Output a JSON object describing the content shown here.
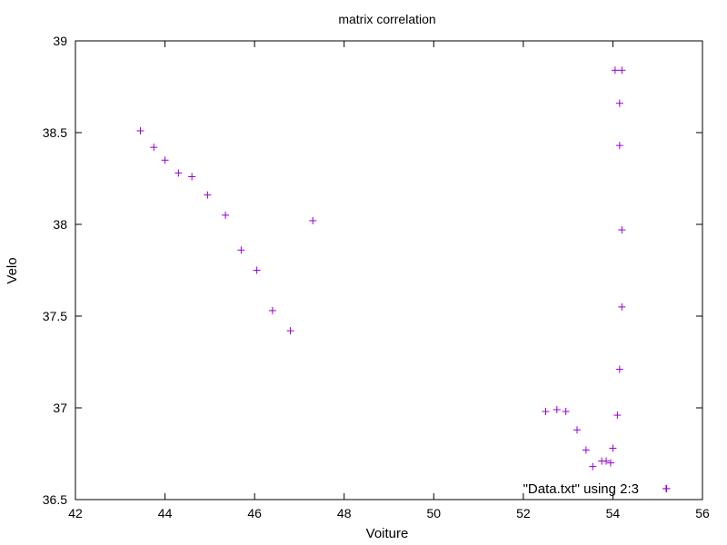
{
  "chart_data": {
    "type": "scatter",
    "title": "matrix correlation",
    "xlabel": "Voiture",
    "ylabel": "Velo",
    "xlim": [
      42,
      56
    ],
    "ylim": [
      36.5,
      39
    ],
    "xticks": [
      42,
      44,
      46,
      48,
      50,
      52,
      54,
      56
    ],
    "yticks": [
      36.5,
      37,
      37.5,
      38,
      38.5,
      39
    ],
    "xtick_labels": [
      "42",
      "44",
      "46",
      "48",
      "50",
      "52",
      "54",
      "56"
    ],
    "ytick_labels": [
      "36.5",
      "37",
      "37.5",
      "38",
      "38.5",
      "39"
    ],
    "grid": false,
    "legend_position": "bottom-right",
    "series": [
      {
        "name": "\"Data.txt\" using 2:3",
        "color": "#9400d3",
        "marker": "plus",
        "points": [
          [
            43.45,
            38.51
          ],
          [
            43.75,
            38.42
          ],
          [
            44.0,
            38.35
          ],
          [
            44.3,
            38.28
          ],
          [
            44.6,
            38.26
          ],
          [
            44.95,
            38.16
          ],
          [
            45.35,
            38.05
          ],
          [
            45.7,
            37.86
          ],
          [
            46.05,
            37.75
          ],
          [
            46.4,
            37.53
          ],
          [
            46.8,
            37.42
          ],
          [
            47.3,
            38.02
          ],
          [
            52.5,
            36.98
          ],
          [
            52.75,
            36.99
          ],
          [
            52.95,
            36.98
          ],
          [
            53.2,
            36.88
          ],
          [
            53.4,
            36.77
          ],
          [
            53.55,
            36.68
          ],
          [
            53.75,
            36.71
          ],
          [
            53.85,
            36.71
          ],
          [
            53.95,
            36.7
          ],
          [
            54.0,
            36.78
          ],
          [
            54.05,
            38.84
          ],
          [
            54.2,
            38.84
          ],
          [
            54.1,
            36.96
          ],
          [
            54.15,
            38.66
          ],
          [
            54.15,
            38.43
          ],
          [
            54.2,
            37.97
          ],
          [
            54.2,
            37.55
          ],
          [
            54.15,
            37.21
          ],
          [
            55.2,
            36.56
          ]
        ]
      }
    ]
  }
}
